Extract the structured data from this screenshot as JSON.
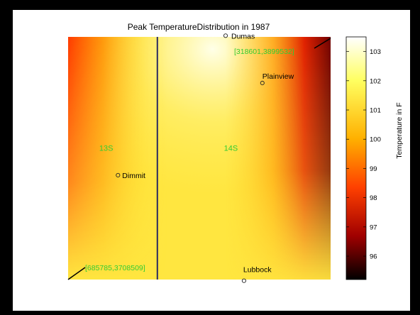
{
  "chart_data": {
    "type": "heatmap",
    "title": "Peak TemperatureDistribution in 1987",
    "colorbar": {
      "label": "Temperature in F",
      "min": 95.2,
      "max": 103.5,
      "ticks": [
        96,
        97,
        98,
        99,
        100,
        101,
        102,
        103
      ],
      "colormap": "hot"
    },
    "zones": [
      {
        "label": "13S",
        "x": 0.145,
        "y": 0.47
      },
      {
        "label": "14S",
        "x": 0.62,
        "y": 0.47
      }
    ],
    "zone_boundary_x": 0.34,
    "cities": [
      {
        "name": "Dumas",
        "x": 0.6,
        "y": -0.005
      },
      {
        "name": "Plainview",
        "x": 0.74,
        "y": 0.19
      },
      {
        "name": "Dimmit",
        "x": 0.19,
        "y": 0.57
      },
      {
        "name": "Lubbock",
        "x": 0.67,
        "y": 1.005
      }
    ],
    "corner_coordinates": [
      {
        "label": "[318601,3899532]",
        "corner": "top-right"
      },
      {
        "label": "[685785,3708509]",
        "corner": "bottom-left"
      }
    ],
    "colors": {
      "label_green": "#33cc33",
      "boundary": "#2a2a60"
    }
  }
}
